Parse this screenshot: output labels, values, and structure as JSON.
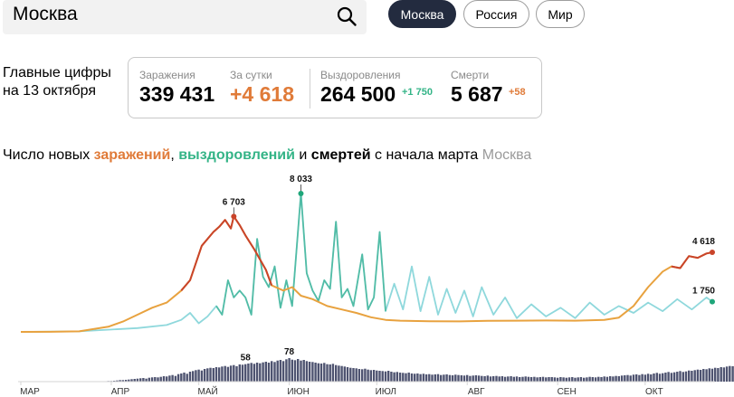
{
  "search": {
    "value": "Москва"
  },
  "regions": [
    {
      "label": "Москва",
      "active": true
    },
    {
      "label": "Россия",
      "active": false
    },
    {
      "label": "Мир",
      "active": false
    }
  ],
  "summary": {
    "line1": "Главные цифры",
    "line2": "на 13 октября"
  },
  "stats": {
    "infections": {
      "label": "Заражения",
      "value": "339 431"
    },
    "daily": {
      "label": "За сутки",
      "value": "+4 618"
    },
    "recoveries": {
      "label": "Выздоровления",
      "value": "264 500",
      "delta": "+1 750"
    },
    "deaths": {
      "label": "Смерти",
      "value": "5 687",
      "delta": "+58"
    }
  },
  "colors": {
    "infections": "#e8a23f",
    "infections_peak": "#c9442a",
    "recoveries": "#8fd8dc",
    "recoveries_peak": "#1fa67a",
    "deaths": "#4e5370",
    "accent": "#e07b39"
  },
  "chart_title": {
    "part1": "Число новых ",
    "infections": "заражений",
    "sep1": ", ",
    "recoveries": "выздоровлений",
    "sep2": " и ",
    "deaths": "смертей",
    "part2": " с начала марта",
    "region": "Москва"
  },
  "chart_data": {
    "type": "line",
    "x_start": "2020-03-01",
    "x_end": "2020-10-13",
    "x_ticks": [
      "МАР",
      "АПР",
      "МАЙ",
      "ИЮН",
      "ИЮЛ",
      "АВГ",
      "СЕН",
      "ОКТ"
    ],
    "series": [
      {
        "key": "infections",
        "points": [
          [
            0,
            0
          ],
          [
            10,
            5
          ],
          [
            20,
            30
          ],
          [
            30,
            300
          ],
          [
            35,
            600
          ],
          [
            40,
            1000
          ],
          [
            45,
            1400
          ],
          [
            50,
            1700
          ],
          [
            55,
            2400
          ],
          [
            58,
            3000
          ],
          [
            62,
            5000
          ],
          [
            66,
            5800
          ],
          [
            68,
            6100
          ],
          [
            70,
            6500
          ],
          [
            72,
            6000
          ],
          [
            73,
            6703
          ],
          [
            75,
            6200
          ],
          [
            77,
            5600
          ],
          [
            80,
            4800
          ],
          [
            84,
            3600
          ],
          [
            86,
            2700
          ],
          [
            90,
            2400
          ],
          [
            93,
            2600
          ],
          [
            96,
            2100
          ],
          [
            100,
            1900
          ],
          [
            105,
            1500
          ],
          [
            110,
            1300
          ],
          [
            115,
            1100
          ],
          [
            120,
            850
          ],
          [
            125,
            700
          ],
          [
            130,
            650
          ],
          [
            140,
            620
          ],
          [
            150,
            610
          ],
          [
            160,
            640
          ],
          [
            170,
            650
          ],
          [
            180,
            660
          ],
          [
            190,
            650
          ],
          [
            200,
            700
          ],
          [
            205,
            830
          ],
          [
            210,
            1500
          ],
          [
            215,
            2600
          ],
          [
            220,
            3500
          ],
          [
            223,
            3800
          ],
          [
            226,
            3700
          ],
          [
            229,
            4400
          ],
          [
            232,
            4300
          ],
          [
            235,
            4550
          ],
          [
            237,
            4618
          ]
        ]
      },
      {
        "key": "recoveries",
        "points": [
          [
            0,
            0
          ],
          [
            20,
            30
          ],
          [
            40,
            220
          ],
          [
            50,
            400
          ],
          [
            55,
            700
          ],
          [
            58,
            1100
          ],
          [
            61,
            500
          ],
          [
            64,
            900
          ],
          [
            67,
            1500
          ],
          [
            69,
            1000
          ],
          [
            71,
            3000
          ],
          [
            73,
            2000
          ],
          [
            75,
            2400
          ],
          [
            77,
            2000
          ],
          [
            79,
            1000
          ],
          [
            81,
            5400
          ],
          [
            83,
            3200
          ],
          [
            85,
            2600
          ],
          [
            87,
            3800
          ],
          [
            89,
            1400
          ],
          [
            91,
            3000
          ],
          [
            93,
            1500
          ],
          [
            96,
            8033
          ],
          [
            98,
            3400
          ],
          [
            100,
            2400
          ],
          [
            102,
            1800
          ],
          [
            104,
            3000
          ],
          [
            106,
            2500
          ],
          [
            108,
            6400
          ],
          [
            110,
            2000
          ],
          [
            112,
            2500
          ],
          [
            114,
            1500
          ],
          [
            117,
            4500
          ],
          [
            119,
            1300
          ],
          [
            121,
            2000
          ],
          [
            123,
            5800
          ],
          [
            125,
            1200
          ],
          [
            128,
            2800
          ],
          [
            131,
            1300
          ],
          [
            134,
            3800
          ],
          [
            137,
            1200
          ],
          [
            140,
            3200
          ],
          [
            143,
            1000
          ],
          [
            146,
            2500
          ],
          [
            149,
            1100
          ],
          [
            152,
            2400
          ],
          [
            155,
            900
          ],
          [
            158,
            2600
          ],
          [
            162,
            1000
          ],
          [
            166,
            2000
          ],
          [
            170,
            800
          ],
          [
            175,
            1600
          ],
          [
            180,
            900
          ],
          [
            185,
            1400
          ],
          [
            190,
            800
          ],
          [
            195,
            1700
          ],
          [
            200,
            1000
          ],
          [
            205,
            1500
          ],
          [
            210,
            1100
          ],
          [
            215,
            1700
          ],
          [
            220,
            1200
          ],
          [
            225,
            1900
          ],
          [
            230,
            1300
          ],
          [
            235,
            2000
          ],
          [
            237,
            1750
          ]
        ]
      },
      {
        "key": "deaths",
        "values": [
          0,
          0,
          0,
          0,
          0,
          0,
          0,
          0,
          0,
          0,
          0,
          0,
          0,
          0,
          0,
          0,
          0,
          0,
          0,
          0,
          0,
          0,
          0,
          0,
          0,
          0,
          0,
          0,
          1,
          1,
          2,
          2,
          3,
          4,
          5,
          5,
          6,
          7,
          8,
          9,
          10,
          11,
          12,
          10,
          13,
          14,
          15,
          14,
          16,
          18,
          17,
          20,
          22,
          19,
          25,
          27,
          30,
          26,
          33,
          35,
          38,
          40,
          37,
          42,
          44,
          46,
          45,
          48,
          47,
          50,
          52,
          49,
          53,
          55,
          51,
          57,
          56,
          58,
          60,
          62,
          59,
          63,
          61,
          64,
          66,
          63,
          68,
          65,
          70,
          72,
          68,
          74,
          78,
          73,
          71,
          75,
          70,
          72,
          68,
          66,
          65,
          63,
          61,
          60,
          62,
          58,
          57,
          59,
          55,
          53,
          52,
          50,
          48,
          46,
          45,
          44,
          42,
          41,
          43,
          40,
          38,
          39,
          37,
          36,
          35,
          34,
          36,
          33,
          31,
          32,
          30,
          29,
          28,
          30,
          27,
          26,
          27,
          25,
          26,
          24,
          25,
          23,
          24,
          25,
          22,
          23,
          24,
          22,
          21,
          23,
          22,
          21,
          20,
          22,
          19,
          20,
          21,
          20,
          19,
          18,
          20,
          17,
          18,
          19,
          17,
          18,
          16,
          17,
          18,
          16,
          17,
          15,
          16,
          17,
          16,
          15,
          16,
          14,
          15,
          16,
          14,
          15,
          15,
          14,
          13,
          15,
          14,
          13,
          14,
          15,
          13,
          14,
          15,
          13,
          14,
          16,
          15,
          14,
          16,
          15,
          17,
          16,
          18,
          17,
          19,
          18,
          20,
          21,
          22,
          20,
          23,
          24,
          22,
          25,
          23,
          26,
          24,
          27,
          29,
          26,
          28,
          30,
          32,
          29,
          31,
          33,
          35,
          32,
          34,
          37,
          36,
          38,
          40,
          39,
          42,
          41,
          44,
          43,
          46,
          45,
          48,
          47,
          50,
          52,
          51,
          55,
          58
        ]
      }
    ],
    "annotations": [
      {
        "series": "infections",
        "label": "6 703",
        "value": 6703
      },
      {
        "series": "recoveries",
        "label": "8 033",
        "value": 8033
      },
      {
        "series": "deaths",
        "label": "78",
        "value": 78
      },
      {
        "series": "infections",
        "label": "4 618",
        "value": 4618
      },
      {
        "series": "recoveries",
        "label": "1 750",
        "value": 1750
      },
      {
        "series": "deaths",
        "label": "58",
        "value": 58
      }
    ]
  }
}
